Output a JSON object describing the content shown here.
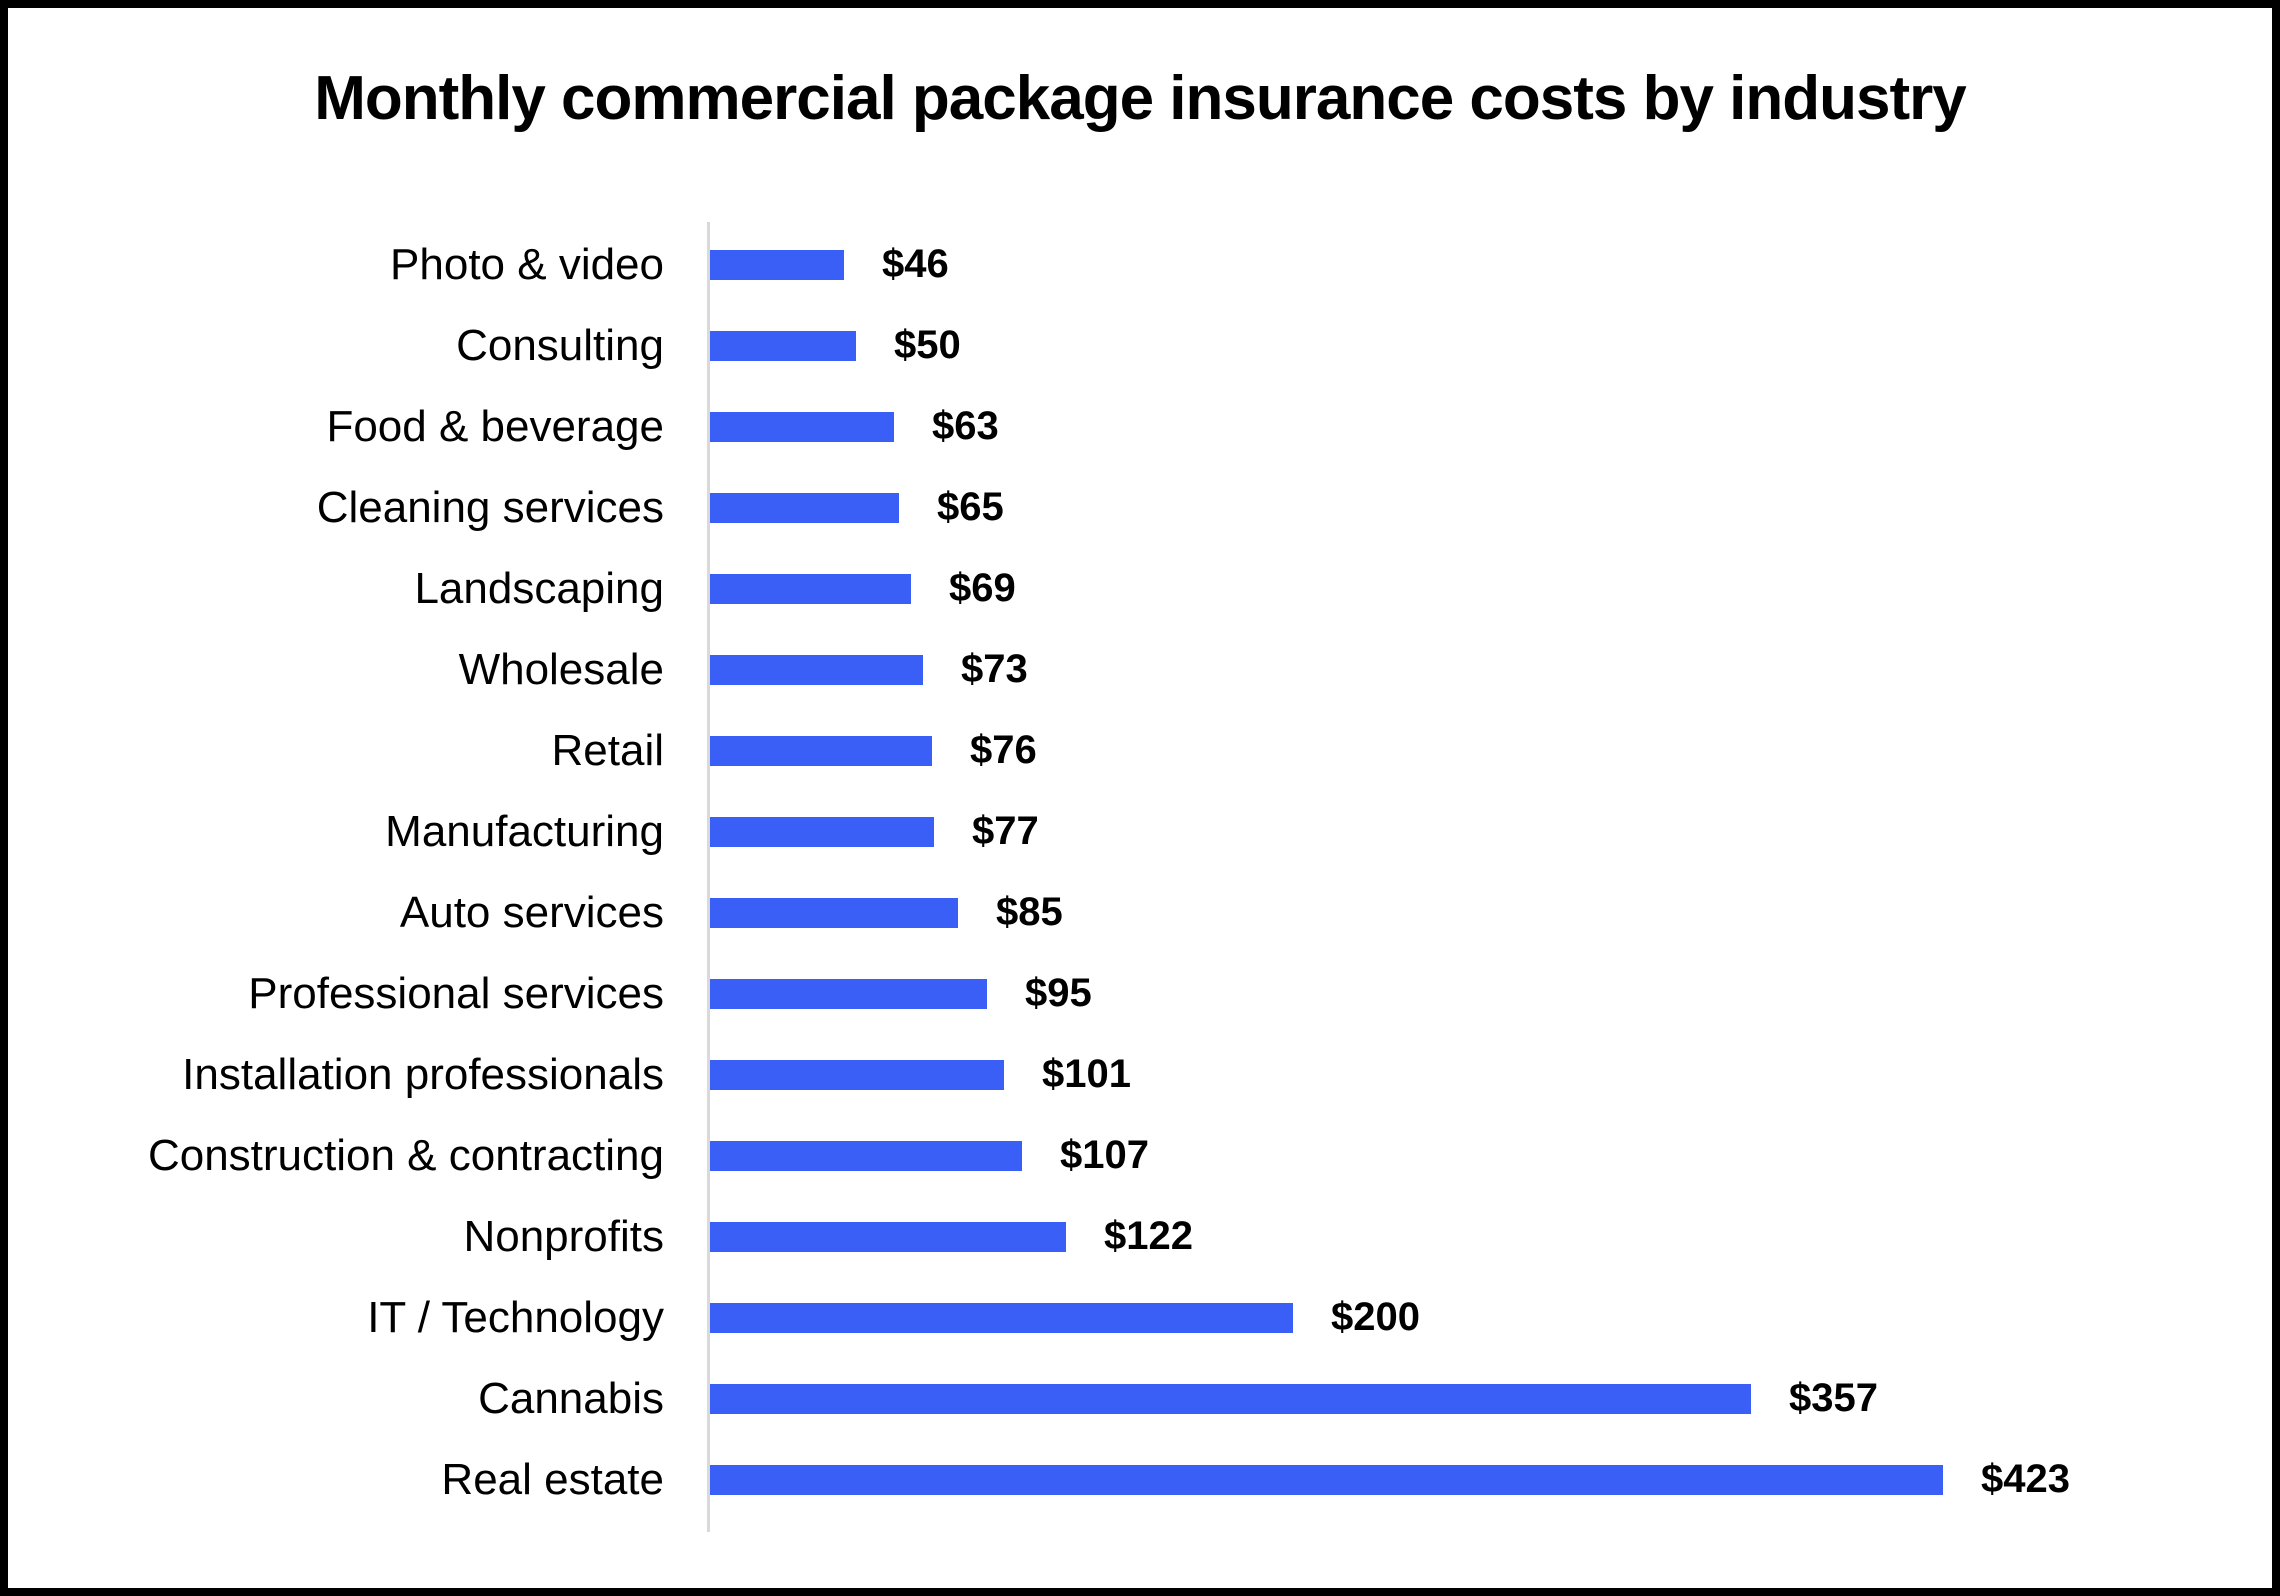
{
  "page": {
    "background": "#FFFFFF",
    "frame_color": "#000000"
  },
  "chart_data": {
    "type": "bar",
    "orientation": "horizontal",
    "title": "Monthly commercial package insurance costs by industry",
    "categories": [
      "Photo & video",
      "Consulting",
      "Food & beverage",
      "Cleaning services",
      "Landscaping",
      "Wholesale",
      "Retail",
      "Manufacturing",
      "Auto services",
      "Professional services",
      "Installation professionals",
      "Construction & contracting",
      "Nonprofits",
      "IT / Technology",
      "Cannabis",
      "Real estate"
    ],
    "values": [
      46,
      50,
      63,
      65,
      69,
      73,
      76,
      77,
      85,
      95,
      101,
      107,
      122,
      200,
      357,
      423
    ],
    "value_labels": [
      "$46",
      "$50",
      "$63",
      "$65",
      "$69",
      "$73",
      "$76",
      "$77",
      "$85",
      "$95",
      "$101",
      "$107",
      "$122",
      "$200",
      "$357",
      "$423"
    ],
    "value_prefix": "$",
    "xlabel": "",
    "ylabel": "",
    "bar_color": "#3A5FF7",
    "axis_line_color": "#D9D9D9",
    "text_color": "#000000",
    "grid": false,
    "legend": false,
    "data_labels": "outside-end",
    "value_axis_ticks_visible": false
  }
}
